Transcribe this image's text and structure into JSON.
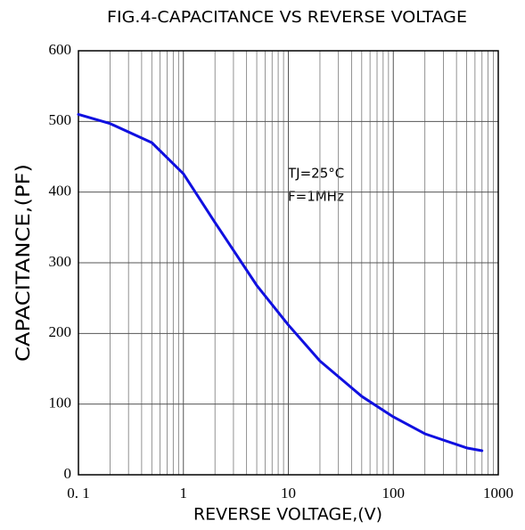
{
  "chart_data": {
    "type": "line",
    "title": "FIG.4-CAPACITANCE VS REVERSE VOLTAGE",
    "x_label": "REVERSE VOLTAGE,(V)",
    "y_label": "CAPACITANCE,(PF)",
    "annotations": [
      "TJ=25°C",
      "F=1MHz"
    ],
    "x": [
      0.1,
      0.2,
      0.5,
      1,
      2,
      5,
      10,
      20,
      50,
      100,
      200,
      500,
      700
    ],
    "values": [
      510,
      497,
      470,
      426,
      357,
      268,
      212,
      161,
      111,
      82,
      58,
      38,
      34
    ],
    "color": "#1010e0",
    "xscale": "log",
    "xlim": [
      0.1,
      1000
    ],
    "xticks": [
      {
        "value": 0.1,
        "label": "0. 1"
      },
      1,
      10,
      100,
      1000
    ],
    "x_minor_ticks": [
      0.2,
      0.3,
      0.4,
      0.5,
      0.6,
      0.7,
      0.8,
      0.9,
      2,
      3,
      4,
      5,
      6,
      7,
      8,
      9,
      20,
      30,
      40,
      50,
      60,
      70,
      80,
      90,
      200,
      300,
      400,
      500,
      600,
      700,
      800,
      900
    ],
    "ylim": [
      0,
      600
    ],
    "yticks": [
      0,
      100,
      200,
      300,
      400,
      500,
      600
    ],
    "grid": true
  }
}
